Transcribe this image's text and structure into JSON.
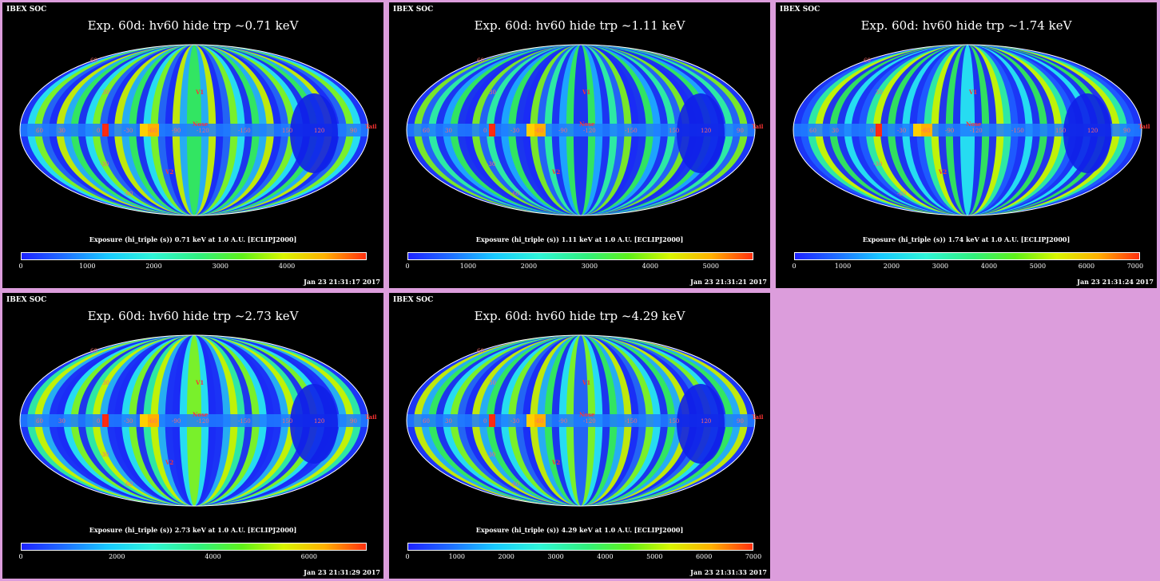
{
  "panels": [
    {
      "brand": "IBEX SOC",
      "title": "Exp.   60d: hv60 hide trp ~0.71 keV",
      "caption": "Exposure (hi_triple (s))  0.71 keV at 1.0 A.U. [ECLIPJ2000]",
      "cbar_ticks": [
        "0",
        "1000",
        "2000",
        "3000",
        "4000"
      ],
      "cbar_max": 5200,
      "date": "Jan 23 21:31:17 2017"
    },
    {
      "brand": "IBEX SOC",
      "title": "Exp.   60d: hv60 hide trp ~1.11 keV",
      "caption": "Exposure (hi_triple (s))  1.11 keV at 1.0 A.U. [ECLIPJ2000]",
      "cbar_ticks": [
        "0",
        "1000",
        "2000",
        "3000",
        "4000",
        "5000"
      ],
      "cbar_max": 5700,
      "date": "Jan 23 21:31:21 2017"
    },
    {
      "brand": "IBEX SOC",
      "title": "Exp.   60d: hv60 hide trp ~1.74 keV",
      "caption": "Exposure (hi_triple (s))  1.74 keV at 1.0 A.U. [ECLIPJ2000]",
      "cbar_ticks": [
        "0",
        "1000",
        "2000",
        "3000",
        "4000",
        "5000",
        "6000",
        "7000"
      ],
      "cbar_max": 7100,
      "date": "Jan 23 21:31:24 2017"
    },
    {
      "brand": "IBEX SOC",
      "title": "Exp.   60d: hv60 hide trp ~2.73 keV",
      "caption": "Exposure (hi_triple (s))  2.73 keV at 1.0 A.U. [ECLIPJ2000]",
      "cbar_ticks": [
        "0",
        "2000",
        "4000",
        "6000"
      ],
      "cbar_max": 7200,
      "date": "Jan 23 21:31:29 2017"
    },
    {
      "brand": "IBEX SOC",
      "title": "Exp.   60d: hv60 hide trp ~4.29 keV",
      "caption": "Exposure (hi_triple (s))  4.29 keV at 1.0 A.U. [ECLIPJ2000]",
      "cbar_ticks": [
        "0",
        "1000",
        "2000",
        "3000",
        "4000",
        "5000",
        "6000",
        "7000"
      ],
      "cbar_max": 7000,
      "date": "Jan 23 21:31:33 2017"
    }
  ],
  "map_labels": {
    "lon_labels": [
      "60",
      "30",
      "0",
      "-30",
      "-60",
      "-90",
      "-120",
      "-150",
      "150",
      "120",
      "90"
    ],
    "lat_labels": [
      "30",
      "-30",
      "60",
      "-60"
    ],
    "points": {
      "v1": "V1",
      "v2": "V2",
      "nose": "Nose",
      "tail": "Tail"
    }
  },
  "colors": {
    "background": "#dc9ddc",
    "panel": "#000000",
    "label_red": "#ff3333"
  }
}
